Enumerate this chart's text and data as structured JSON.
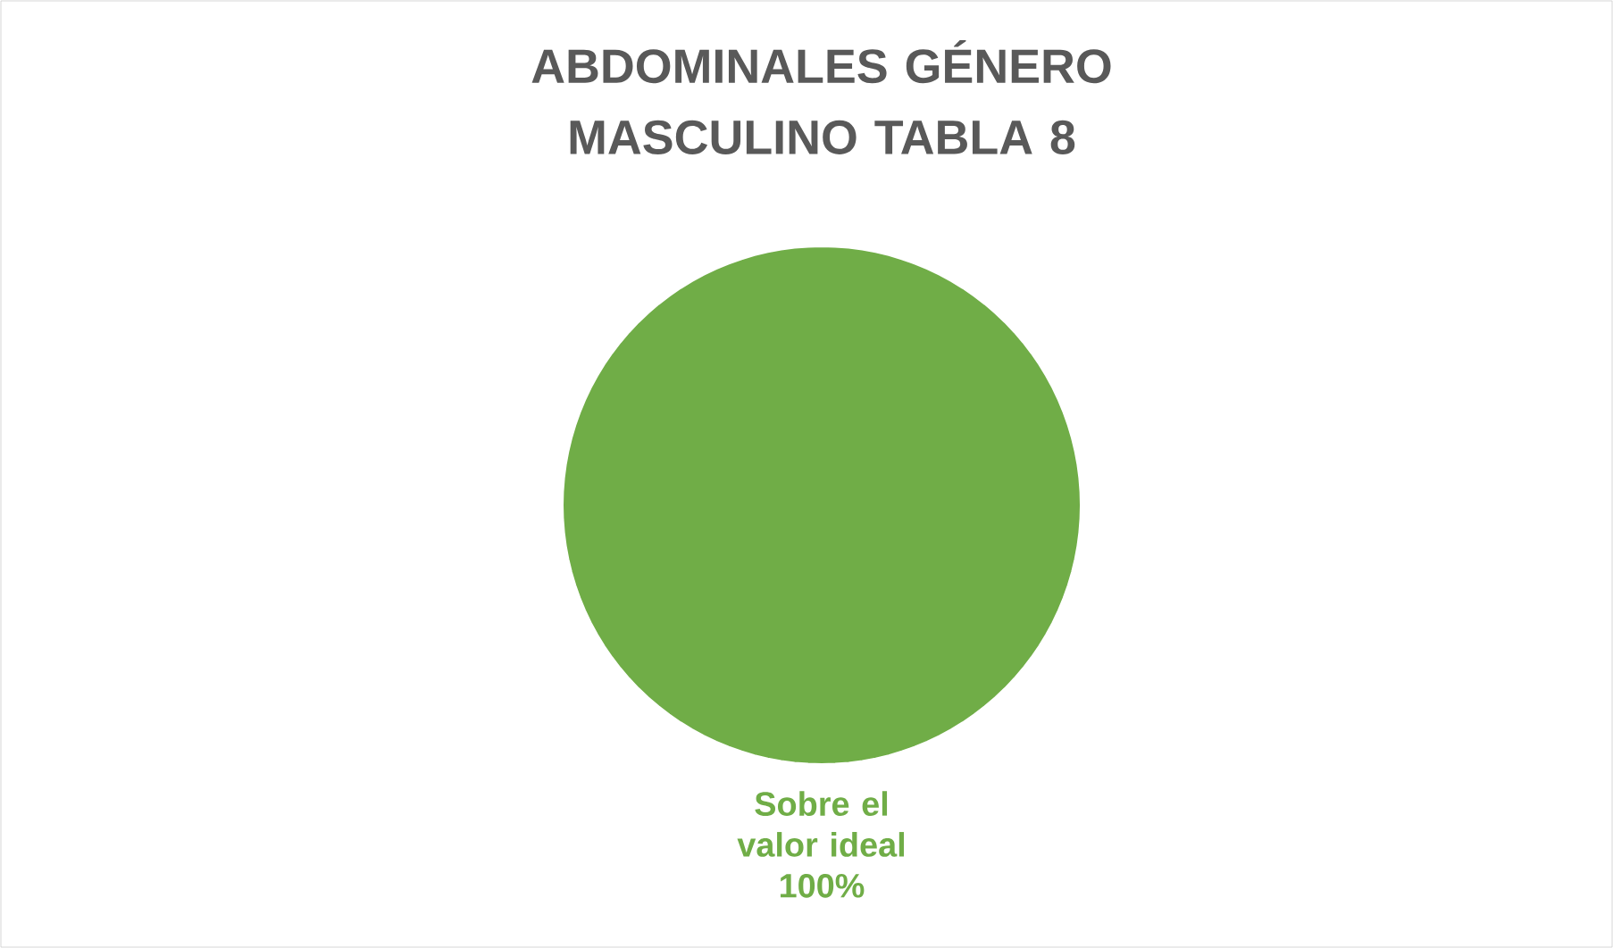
{
  "chart_data": {
    "type": "pie",
    "title": "ABDOMINALES GÉNERO MASCULINO TABLA 8",
    "categories": [
      "Sobre el valor ideal"
    ],
    "values": [
      100
    ],
    "colors": [
      "#70ad47"
    ],
    "value_labels": [
      "100%"
    ]
  }
}
